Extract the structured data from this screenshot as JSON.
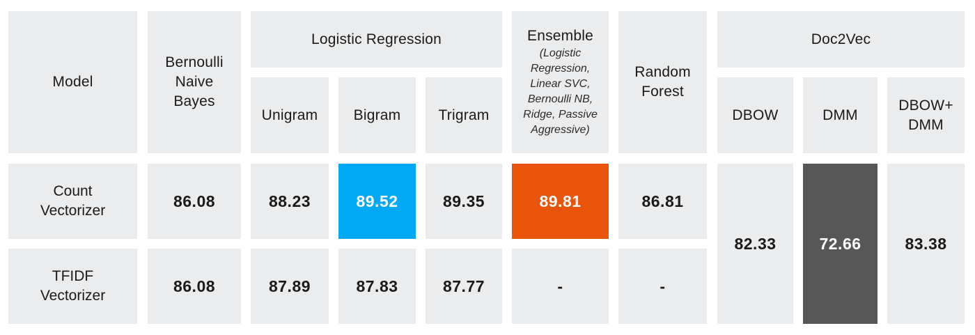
{
  "chart_data": {
    "type": "table",
    "header": {
      "model": "Model",
      "bnb": "Bernoulli Naive Bayes",
      "logreg": "Logistic Regression",
      "unigram": "Unigram",
      "bigram": "Bigram",
      "trigram": "Trigram",
      "ensemble": "Ensemble",
      "ensemble_detail": "(Logistic Regression, Linear SVC, Bernoulli NB, Ridge, Passive Aggressive)",
      "rf": "Random Forest",
      "doc2vec": "Doc2Vec",
      "dbow": "DBOW",
      "dmm": "DMM",
      "dbow_dmm": "DBOW+ DMM"
    },
    "rows": [
      {
        "label": "Count Vectorizer",
        "bnb": "86.08",
        "unigram": "88.23",
        "bigram": "89.52",
        "trigram": "89.35",
        "ensemble": "89.81",
        "rf": "86.81"
      },
      {
        "label": "TFIDF Vectorizer",
        "bnb": "86.08",
        "unigram": "87.89",
        "bigram": "87.83",
        "trigram": "87.77",
        "ensemble": "-",
        "rf": "-"
      }
    ],
    "doc2vec": {
      "dbow": "82.33",
      "dmm": "72.66",
      "dbow_dmm": "83.38"
    },
    "highlight_colors": {
      "best_logreg": "#03a9f4",
      "best_overall": "#e8540a",
      "lowest": "#575757",
      "cell_background": "#ebeced"
    }
  }
}
